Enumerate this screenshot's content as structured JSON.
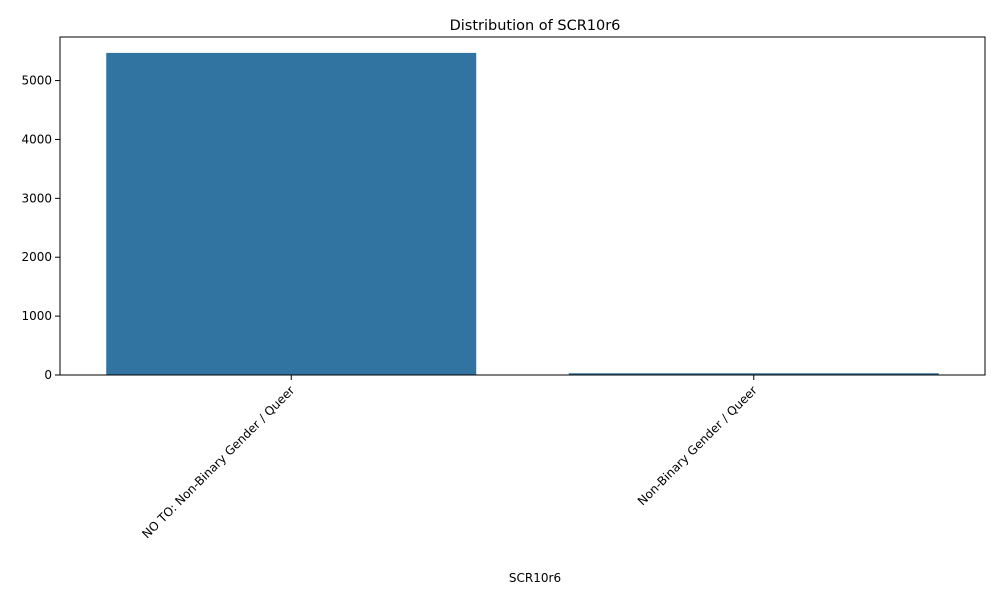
{
  "chart_data": {
    "type": "bar",
    "title": "Distribution of SCR10r6",
    "xlabel": "SCR10r6",
    "ylabel": "",
    "categories": [
      "NO TO: Non-Binary Gender / Queer",
      "Non-Binary Gender / Queer"
    ],
    "values": [
      5470,
      30
    ],
    "ylim": [
      0,
      5740
    ],
    "yticks": [
      0,
      1000,
      2000,
      3000,
      4000,
      5000
    ],
    "bar_color": "#3274a1",
    "grid": false,
    "legend": "none"
  }
}
